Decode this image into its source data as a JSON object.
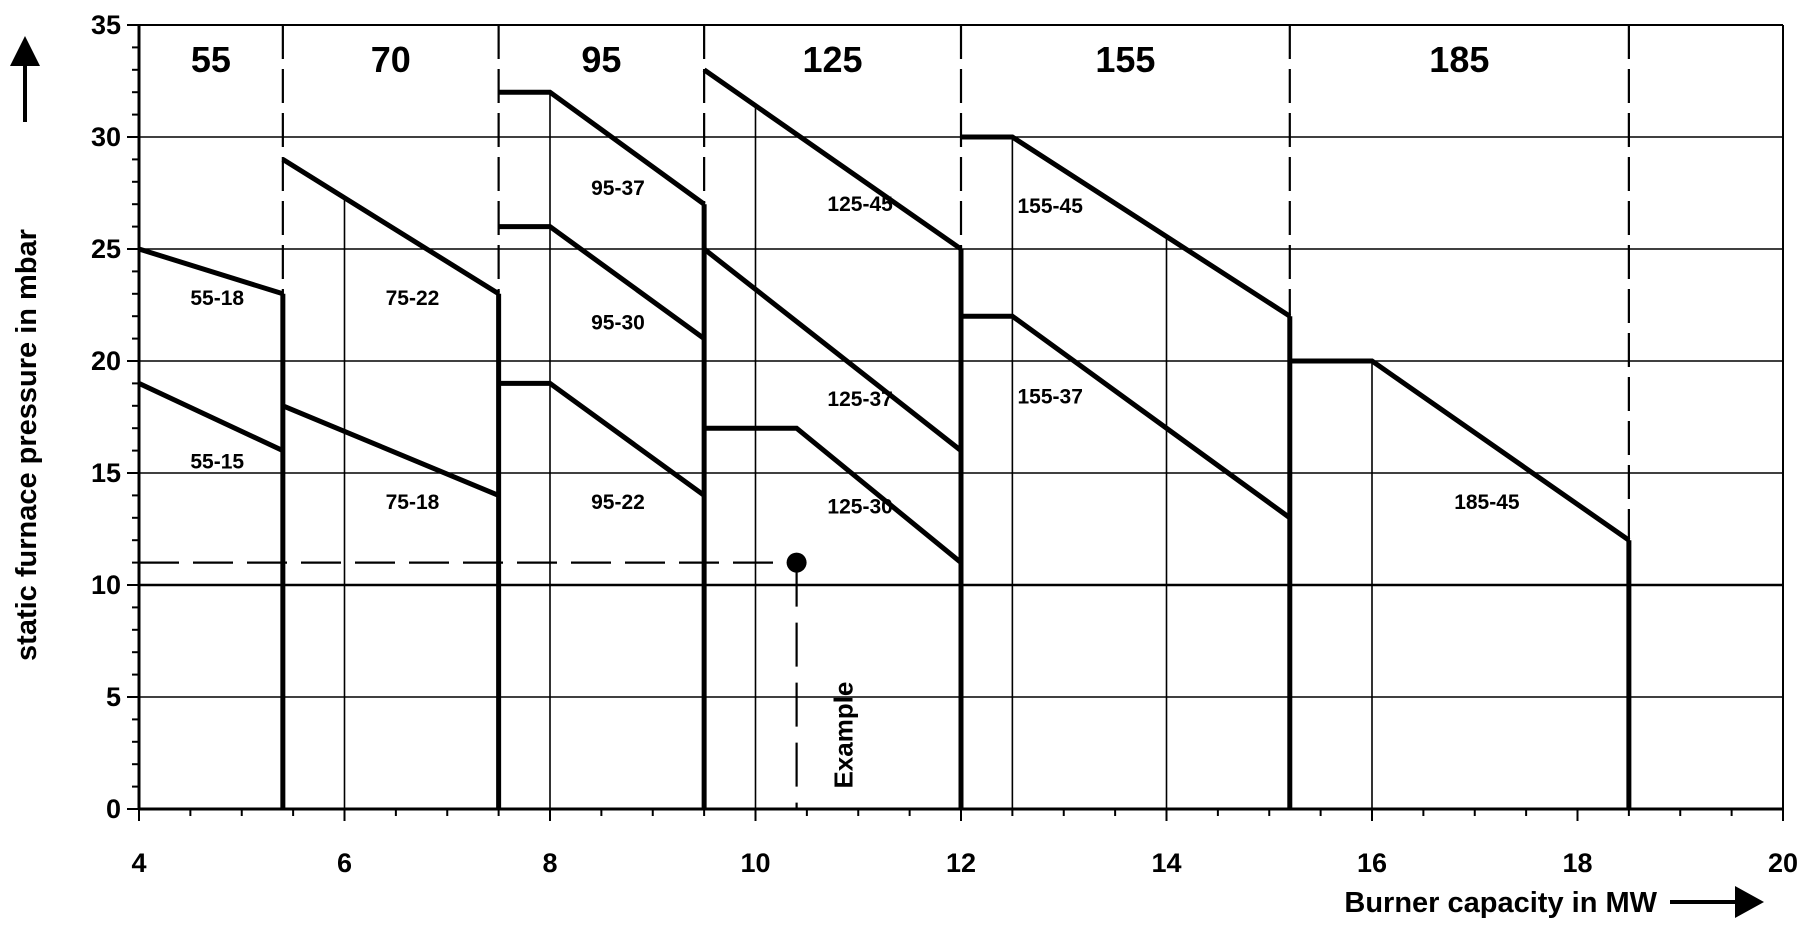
{
  "chart_data": {
    "type": "line",
    "xlabel": "Burner  capacity in MW",
    "ylabel": "static furnace pressure in mbar",
    "xlim": [
      4,
      20
    ],
    "ylim": [
      0,
      35
    ],
    "x_ticks": [
      4,
      6,
      8,
      10,
      12,
      14,
      16,
      18,
      20
    ],
    "y_ticks": [
      0,
      5,
      10,
      15,
      20,
      25,
      30,
      35
    ],
    "grid": "horizontal",
    "size_ranges": [
      {
        "label": "55",
        "x_from": 4.0,
        "x_to": 5.4
      },
      {
        "label": "70",
        "x_from": 5.4,
        "x_to": 7.5
      },
      {
        "label": "95",
        "x_from": 7.5,
        "x_to": 9.5
      },
      {
        "label": "125",
        "x_from": 9.5,
        "x_to": 12.0
      },
      {
        "label": "155",
        "x_from": 12.0,
        "x_to": 15.2
      },
      {
        "label": "185",
        "x_from": 15.2,
        "x_to": 18.5
      }
    ],
    "series": [
      {
        "name": "55-18",
        "x": [
          4.0,
          5.4
        ],
        "y": [
          25,
          23
        ],
        "label_at": [
          4.5,
          22.5
        ]
      },
      {
        "name": "55-15",
        "x": [
          4.0,
          5.4
        ],
        "y": [
          19,
          16
        ],
        "label_at": [
          4.5,
          15.2
        ]
      },
      {
        "name": "75-22",
        "x": [
          5.4,
          7.5
        ],
        "y": [
          29,
          23
        ],
        "label_at": [
          6.4,
          22.5
        ]
      },
      {
        "name": "75-18",
        "x": [
          5.4,
          7.5
        ],
        "y": [
          18,
          14
        ],
        "label_at": [
          6.4,
          13.4
        ]
      },
      {
        "name": "95-37",
        "x": [
          7.5,
          8.0,
          9.5
        ],
        "y": [
          32,
          32,
          27
        ],
        "label_at": [
          8.4,
          27.4
        ]
      },
      {
        "name": "95-30",
        "x": [
          7.5,
          8.0,
          9.5
        ],
        "y": [
          26,
          26,
          21
        ],
        "label_at": [
          8.4,
          21.4
        ]
      },
      {
        "name": "95-22",
        "x": [
          7.5,
          8.0,
          9.5
        ],
        "y": [
          19,
          19,
          14
        ],
        "label_at": [
          8.4,
          13.4
        ]
      },
      {
        "name": "125-45",
        "x": [
          9.5,
          12.0
        ],
        "y": [
          33,
          25
        ],
        "label_at": [
          10.7,
          26.7
        ]
      },
      {
        "name": "125-37",
        "x": [
          9.5,
          12.0
        ],
        "y": [
          25,
          16
        ],
        "label_at": [
          10.7,
          18.0
        ]
      },
      {
        "name": "125-30",
        "x": [
          9.5,
          10.4,
          12.0
        ],
        "y": [
          17,
          17,
          11
        ],
        "label_at": [
          10.7,
          13.2
        ]
      },
      {
        "name": "155-45",
        "x": [
          12.0,
          12.5,
          15.2
        ],
        "y": [
          30,
          30,
          22
        ],
        "label_at": [
          12.55,
          26.6
        ]
      },
      {
        "name": "155-37",
        "x": [
          12.0,
          12.5,
          15.2
        ],
        "y": [
          22,
          22,
          13
        ],
        "label_at": [
          12.55,
          18.1
        ]
      },
      {
        "name": "185-45",
        "x": [
          15.2,
          16.0,
          18.5
        ],
        "y": [
          20,
          20,
          12
        ],
        "label_at": [
          16.8,
          13.4
        ]
      }
    ],
    "annotations": [
      {
        "text": "Example",
        "x": 10.4,
        "y": 11
      }
    ]
  }
}
